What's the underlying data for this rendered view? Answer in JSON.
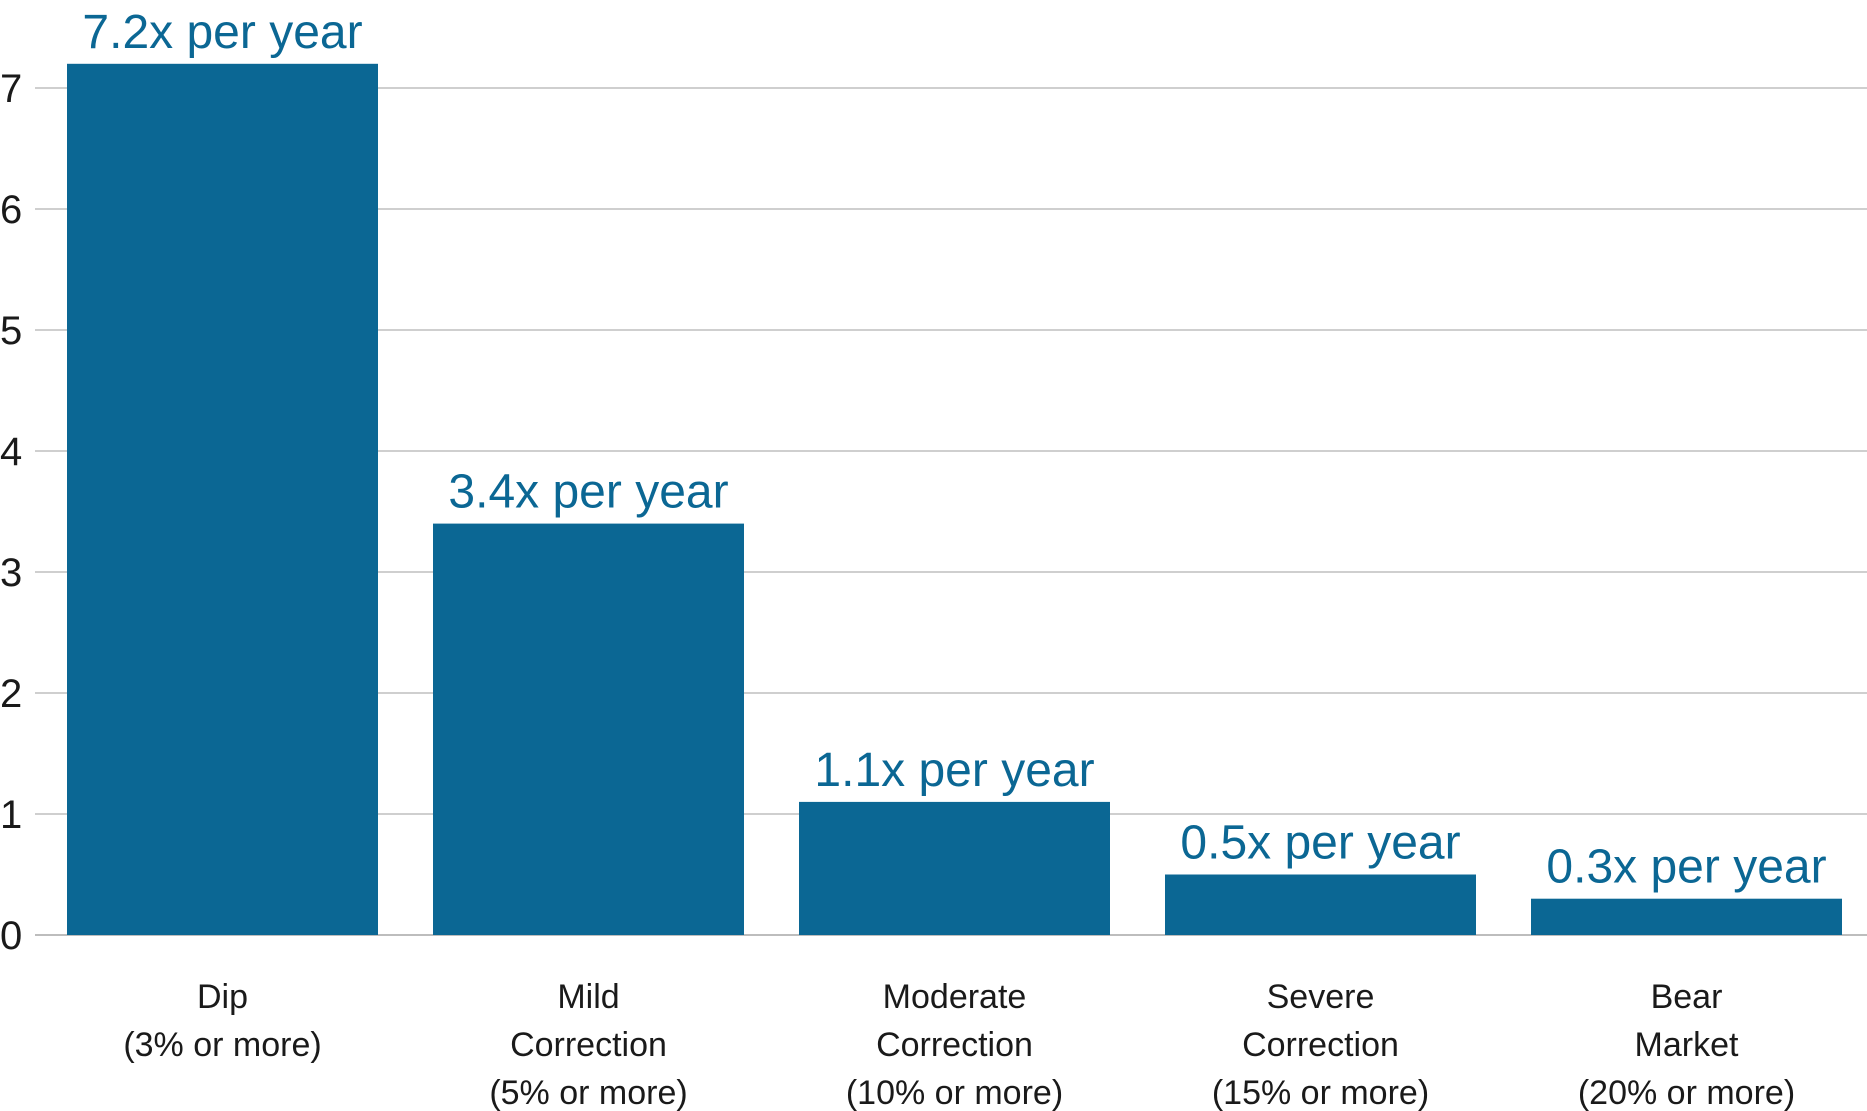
{
  "chart_data": {
    "type": "bar",
    "title": "",
    "xlabel": "",
    "ylabel": "",
    "ylim": [
      0,
      7.5
    ],
    "yticks": [
      "0",
      "1",
      "2",
      "3",
      "4",
      "5",
      "6",
      "7"
    ],
    "grid": true,
    "legend": "none",
    "categories": [
      [
        "Dip",
        "(3% or more)"
      ],
      [
        "Mild",
        "Correction",
        "(5% or more)"
      ],
      [
        "Moderate",
        "Correction",
        "(10% or more)"
      ],
      [
        "Severe",
        "Correction",
        "(15% or more)"
      ],
      [
        "Bear",
        "Market",
        "(20% or more)"
      ]
    ],
    "values": [
      7.2,
      3.4,
      1.1,
      0.5,
      0.3
    ],
    "data_labels": [
      "7.2x per year",
      "3.4x per year",
      "1.1x per year",
      "0.5x per year",
      "0.3x per year"
    ]
  },
  "colors": {
    "bar": "#0b6794",
    "data_label": "#0b6794"
  }
}
